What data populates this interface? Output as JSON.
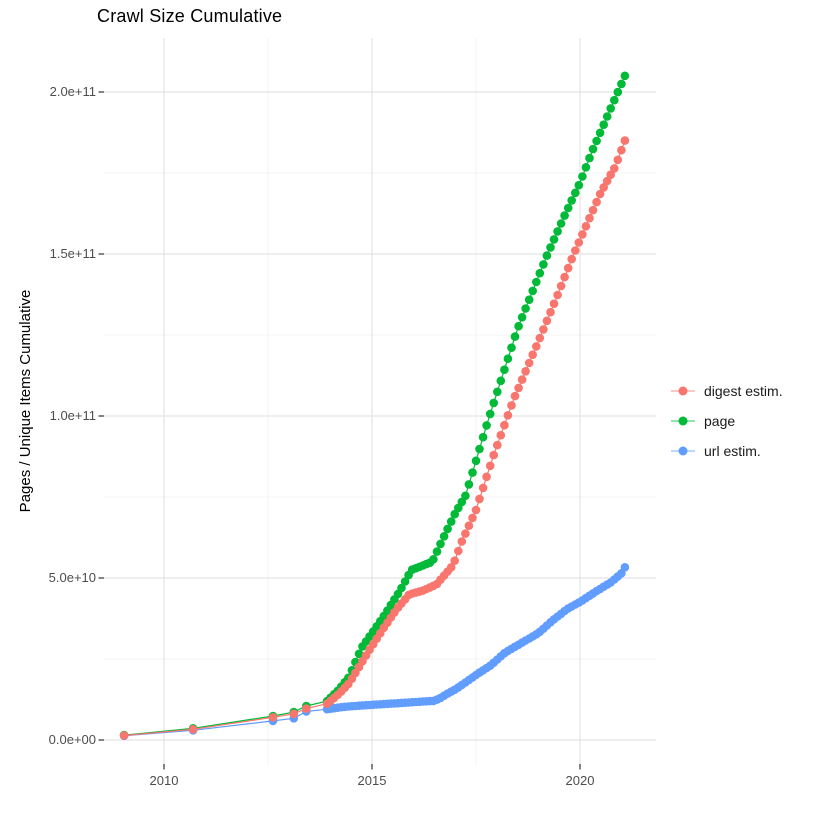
{
  "chart_data": {
    "type": "scatter",
    "title": "Crawl Size Cumulative",
    "xlabel": "",
    "ylabel": "Pages / Unique Items Cumulative",
    "grid": true,
    "legend_position": "right",
    "xlim": [
      2008.55,
      2021.85
    ],
    "ylim": [
      -11000000000.0,
      217000000000.0
    ],
    "x_ticks": [
      {
        "value": 2010,
        "label": "2010"
      },
      {
        "value": 2015,
        "label": "2015"
      },
      {
        "value": 2020,
        "label": "2020"
      }
    ],
    "x_minor_ticks": [
      2012.5,
      2017.5
    ],
    "y_ticks": [
      {
        "value": 0,
        "label": "0.0e+00"
      },
      {
        "value": 50000000000.0,
        "label": "5.0e+10"
      },
      {
        "value": 100000000000.0,
        "label": "1.0e+11"
      },
      {
        "value": 150000000000.0,
        "label": "1.5e+11"
      },
      {
        "value": 200000000000.0,
        "label": "2.0e+11"
      }
    ],
    "y_minor_ticks": [
      25000000000.0,
      75000000000.0,
      125000000000.0,
      175000000000.0
    ],
    "point_dates": {
      "sparse": [
        2009.04,
        2010.7,
        2012.62,
        2013.12,
        2013.42
      ],
      "regular_start": 2013.92,
      "regular_end": 2021.08,
      "regular_count": 85
    },
    "series": [
      {
        "name": "digest estim.",
        "color": "#F8766D",
        "points": [
          [
            2009.04,
            1400000000.0
          ],
          [
            2010.7,
            3300000000.0
          ],
          [
            2012.62,
            7000000000.0
          ],
          [
            2013.12,
            8100000000.0
          ],
          [
            2013.42,
            9700000000.0
          ],
          [
            2013.92,
            11200000000.0
          ],
          [
            2014.2,
            14200000000.0
          ],
          [
            2014.45,
            17500000000.0
          ],
          [
            2014.9,
            27000000000.0
          ],
          [
            2015.0,
            29000000000.0
          ],
          [
            2015.25,
            34000000000.0
          ],
          [
            2015.6,
            40500000000.0
          ],
          [
            2015.9,
            45000000000.0
          ],
          [
            2016.2,
            46000000000.0
          ],
          [
            2016.55,
            48000000000.0
          ],
          [
            2016.95,
            54000000000.0
          ],
          [
            2017.15,
            61000000000.0
          ],
          [
            2017.5,
            71000000000.0
          ],
          [
            2017.9,
            87000000000.0
          ],
          [
            2018.4,
            105000000000.0
          ],
          [
            2019.0,
            123000000000.0
          ],
          [
            2019.45,
            137000000000.0
          ],
          [
            2019.85,
            150000000000.0
          ],
          [
            2020.5,
            169000000000.0
          ],
          [
            2020.85,
            177000000000.0
          ],
          [
            2021.08,
            185000000000.0
          ]
        ]
      },
      {
        "name": "page",
        "color": "#00BA38",
        "points": [
          [
            2009.04,
            1500000000.0
          ],
          [
            2010.7,
            3600000000.0
          ],
          [
            2012.62,
            7400000000.0
          ],
          [
            2013.12,
            8600000000.0
          ],
          [
            2013.42,
            10500000000.0
          ],
          [
            2013.92,
            12000000000.0
          ],
          [
            2014.2,
            15500000000.0
          ],
          [
            2014.45,
            19500000000.0
          ],
          [
            2014.75,
            28500000000.0
          ],
          [
            2015.0,
            33000000000.0
          ],
          [
            2015.25,
            37600000000.0
          ],
          [
            2015.67,
            46000000000.0
          ],
          [
            2015.95,
            52500000000.0
          ],
          [
            2016.45,
            55000000000.0
          ],
          [
            2016.7,
            62000000000.0
          ],
          [
            2017.0,
            70000000000.0
          ],
          [
            2017.25,
            75500000000.0
          ],
          [
            2017.8,
            99000000000.0
          ],
          [
            2018.5,
            127000000000.0
          ],
          [
            2019.22,
            150000000000.0
          ],
          [
            2019.6,
            161000000000.0
          ],
          [
            2020.0,
            172000000000.0
          ],
          [
            2020.3,
            182000000000.0
          ],
          [
            2021.08,
            205000000000.0
          ]
        ]
      },
      {
        "name": "url estim.",
        "color": "#619CFF",
        "points": [
          [
            2009.04,
            1300000000.0
          ],
          [
            2010.7,
            3000000000.0
          ],
          [
            2012.62,
            5900000000.0
          ],
          [
            2013.12,
            6700000000.0
          ],
          [
            2013.42,
            8800000000.0
          ],
          [
            2013.92,
            9500000000.0
          ],
          [
            2014.3,
            10200000000.0
          ],
          [
            2014.8,
            10700000000.0
          ],
          [
            2015.3,
            11100000000.0
          ],
          [
            2015.9,
            11600000000.0
          ],
          [
            2016.5,
            12100000000.0
          ],
          [
            2016.65,
            13000000000.0
          ],
          [
            2016.8,
            14200000000.0
          ],
          [
            2017.0,
            15600000000.0
          ],
          [
            2017.25,
            17800000000.0
          ],
          [
            2017.55,
            20500000000.0
          ],
          [
            2017.85,
            23000000000.0
          ],
          [
            2018.2,
            27000000000.0
          ],
          [
            2018.6,
            30000000000.0
          ],
          [
            2019.0,
            33000000000.0
          ],
          [
            2019.35,
            37000000000.0
          ],
          [
            2019.7,
            40500000000.0
          ],
          [
            2020.0,
            42600000000.0
          ],
          [
            2020.4,
            46000000000.0
          ],
          [
            2020.75,
            48700000000.0
          ],
          [
            2021.0,
            51500000000.0
          ],
          [
            2021.08,
            53300000000.0
          ]
        ]
      }
    ]
  },
  "legend": {
    "items": [
      {
        "label": "digest estim."
      },
      {
        "label": "page"
      },
      {
        "label": "url estim."
      }
    ]
  }
}
